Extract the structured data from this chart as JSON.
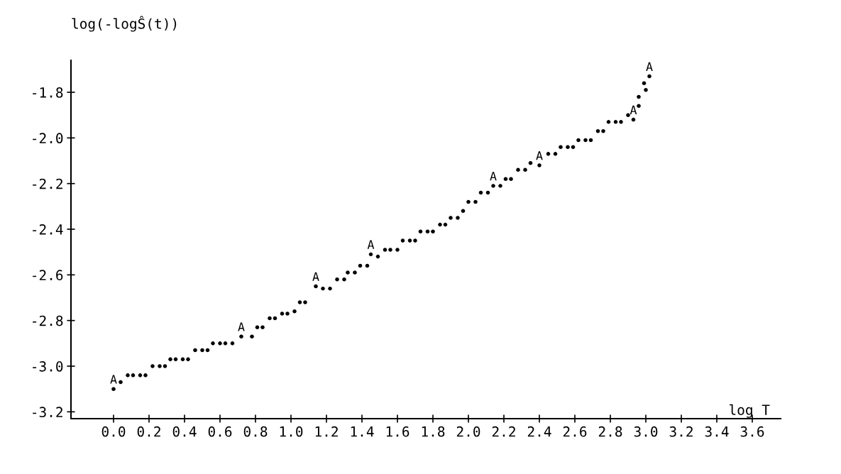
{
  "chart_data": {
    "type": "scatter",
    "xlabel": "log T",
    "ylabel": "log(-logŜ(t))",
    "series": [
      {
        "color": "#000000",
        "marker": "circle",
        "x": [
          0.04,
          0.08,
          0.11,
          0.15,
          0.18,
          0.22,
          0.26,
          0.29,
          0.32,
          0.35,
          0.39,
          0.42,
          0.46,
          0.5,
          0.53,
          0.56,
          0.6,
          0.63,
          0.67,
          0.78,
          0.81,
          0.84,
          0.88,
          0.91,
          0.95,
          0.98,
          1.02,
          1.05,
          1.08,
          1.18,
          1.22,
          1.26,
          1.3,
          1.32,
          1.36,
          1.39,
          1.43,
          1.49,
          1.53,
          1.56,
          1.6,
          1.63,
          1.67,
          1.7,
          1.73,
          1.77,
          1.8,
          1.84,
          1.87,
          1.9,
          1.94,
          1.97,
          2.0,
          2.04,
          2.07,
          2.11,
          2.18,
          2.21,
          2.24,
          2.28,
          2.32,
          2.35,
          2.45,
          2.49,
          2.52,
          2.56,
          2.59,
          2.62,
          2.66,
          2.69,
          2.73,
          2.76,
          2.79,
          2.83,
          2.86,
          2.9,
          2.96,
          2.96,
          3.0,
          2.99
        ],
        "values": [
          -3.07,
          -3.04,
          -3.04,
          -3.04,
          -3.04,
          -3.0,
          -3.0,
          -3.0,
          -2.97,
          -2.97,
          -2.97,
          -2.97,
          -2.93,
          -2.93,
          -2.93,
          -2.9,
          -2.9,
          -2.9,
          -2.9,
          -2.87,
          -2.83,
          -2.83,
          -2.79,
          -2.79,
          -2.77,
          -2.77,
          -2.76,
          -2.72,
          -2.72,
          -2.66,
          -2.66,
          -2.62,
          -2.62,
          -2.59,
          -2.59,
          -2.56,
          -2.56,
          -2.52,
          -2.49,
          -2.49,
          -2.49,
          -2.45,
          -2.45,
          -2.45,
          -2.41,
          -2.41,
          -2.41,
          -2.38,
          -2.38,
          -2.35,
          -2.35,
          -2.32,
          -2.28,
          -2.28,
          -2.24,
          -2.24,
          -2.21,
          -2.18,
          -2.18,
          -2.14,
          -2.14,
          -2.11,
          -2.07,
          -2.07,
          -2.04,
          -2.04,
          -2.04,
          -2.01,
          -2.01,
          -2.01,
          -1.97,
          -1.97,
          -1.93,
          -1.93,
          -1.93,
          -1.9,
          -1.86,
          -1.82,
          -1.79,
          -1.76
        ]
      },
      {
        "color": "#000000",
        "marker": "circle",
        "x": [
          0.0,
          0.72,
          1.14,
          1.45,
          2.14,
          2.4,
          2.93,
          3.02
        ],
        "values": [
          -3.1,
          -2.87,
          -2.65,
          -2.51,
          -2.21,
          -2.12,
          -1.92,
          -1.73
        ]
      }
    ],
    "annotations": [
      {
        "text": "A",
        "x": 0.0,
        "y": -3.1
      },
      {
        "text": "A",
        "x": 0.72,
        "y": -2.87
      },
      {
        "text": "A",
        "x": 1.14,
        "y": -2.65
      },
      {
        "text": "A",
        "x": 1.45,
        "y": -2.51
      },
      {
        "text": "A",
        "x": 2.14,
        "y": -2.21
      },
      {
        "text": "A",
        "x": 2.4,
        "y": -2.12
      },
      {
        "text": "A",
        "x": 2.93,
        "y": -1.92
      },
      {
        "text": "A",
        "x": 3.02,
        "y": -1.73
      }
    ],
    "xlim": [
      -0.24,
      3.76
    ],
    "ylim": [
      -3.23,
      -1.66
    ],
    "xticks": [
      {
        "value": 0.0,
        "label": "0.0"
      },
      {
        "value": 0.2,
        "label": "0.2"
      },
      {
        "value": 0.4,
        "label": "0.4"
      },
      {
        "value": 0.6,
        "label": "0.6"
      },
      {
        "value": 0.8,
        "label": "0.8"
      },
      {
        "value": 1.0,
        "label": "1.0"
      },
      {
        "value": 1.2,
        "label": "1.2"
      },
      {
        "value": 1.4,
        "label": "1.4"
      },
      {
        "value": 1.6,
        "label": "1.6"
      },
      {
        "value": 1.8,
        "label": "1.8"
      },
      {
        "value": 2.0,
        "label": "2.0"
      },
      {
        "value": 2.2,
        "label": "2.2"
      },
      {
        "value": 2.4,
        "label": "2.4"
      },
      {
        "value": 2.6,
        "label": "2.6"
      },
      {
        "value": 2.8,
        "label": "2.8"
      },
      {
        "value": 3.0,
        "label": "3.0"
      },
      {
        "value": 3.2,
        "label": "3.2"
      },
      {
        "value": 3.4,
        "label": "3.4"
      },
      {
        "value": 3.6,
        "label": "3.6"
      }
    ],
    "yticks": [
      {
        "value": -1.8,
        "label": "-1.8"
      },
      {
        "value": -2.0,
        "label": "-2.0"
      },
      {
        "value": -2.2,
        "label": "-2.2"
      },
      {
        "value": -2.4,
        "label": "-2.4"
      },
      {
        "value": -2.6,
        "label": "-2.6"
      },
      {
        "value": -2.8,
        "label": "-2.8"
      },
      {
        "value": -3.0,
        "label": "-3.0"
      },
      {
        "value": -3.2,
        "label": "-3.2"
      }
    ],
    "grid": false,
    "legend": false
  }
}
